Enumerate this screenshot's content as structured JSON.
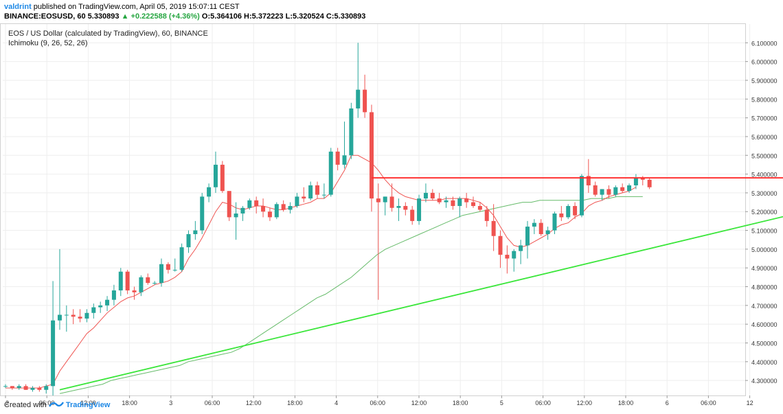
{
  "header": {
    "author": "valdrint",
    "published": "published on TradingView.com, April 05, 2019 15:07:11 CEST",
    "symbol": "BINANCE:EOSUSD, 60",
    "last": "5.330893",
    "change": "▲ +0.222588 (+4.36%)",
    "ohlc": "O:5.364106 H:5.372223 L:5.320524 C:5.330893"
  },
  "legend": {
    "title": "EOS / US Dollar (calculated by TradingView), 60, BINANCE",
    "indicator": "Ichimoku (9, 26, 52, 26)"
  },
  "footer": {
    "created": "Created with",
    "brand": "TradingView"
  },
  "colors": {
    "up": "#26a69a",
    "down": "#ef5350",
    "tenkan": "#ef5350",
    "kijun": "#66bb6a",
    "trend_red": "#ff2b2b",
    "trend_green": "#39e639"
  },
  "chart_data": {
    "type": "candlestick",
    "ylim": [
      4.22,
      6.2
    ],
    "y_ticks": [
      "6.100000",
      "6.000000",
      "5.900000",
      "5.800000",
      "5.700000",
      "5.600000",
      "5.500000",
      "5.400000",
      "5.300000",
      "5.200000",
      "5.100000",
      "5.000000",
      "4.900000",
      "4.800000",
      "4.700000",
      "4.600000",
      "4.500000",
      "4.400000",
      "4.300000"
    ],
    "x_ticks": [
      "2",
      "06:00",
      "12:00",
      "18:00",
      "3",
      "06:00",
      "12:00",
      "18:00",
      "4",
      "06:00",
      "12:00",
      "18:00",
      "5",
      "06:00",
      "12:00",
      "18:00",
      "6",
      "06:00",
      "12"
    ],
    "candles": [
      [
        4.27,
        4.28,
        4.26,
        4.27
      ],
      [
        4.27,
        4.27,
        4.25,
        4.26
      ],
      [
        4.26,
        4.28,
        4.25,
        4.27
      ],
      [
        4.27,
        4.28,
        4.25,
        4.25
      ],
      [
        4.25,
        4.27,
        4.24,
        4.26
      ],
      [
        4.26,
        4.27,
        4.24,
        4.25
      ],
      [
        4.25,
        4.28,
        4.23,
        4.27
      ],
      [
        4.27,
        4.83,
        4.22,
        4.62
      ],
      [
        4.62,
        5.0,
        4.57,
        4.65
      ],
      [
        4.65,
        4.7,
        4.56,
        4.65
      ],
      [
        4.65,
        4.68,
        4.6,
        4.64
      ],
      [
        4.64,
        4.68,
        4.61,
        4.63
      ],
      [
        4.63,
        4.68,
        4.61,
        4.66
      ],
      [
        4.66,
        4.71,
        4.63,
        4.69
      ],
      [
        4.69,
        4.72,
        4.66,
        4.7
      ],
      [
        4.7,
        4.75,
        4.67,
        4.73
      ],
      [
        4.73,
        4.81,
        4.7,
        4.78
      ],
      [
        4.78,
        4.9,
        4.75,
        4.88
      ],
      [
        4.88,
        4.89,
        4.76,
        4.78
      ],
      [
        4.78,
        4.8,
        4.73,
        4.77
      ],
      [
        4.77,
        4.86,
        4.75,
        4.85
      ],
      [
        4.85,
        4.87,
        4.81,
        4.82
      ],
      [
        4.82,
        4.83,
        4.81,
        4.82
      ],
      [
        4.82,
        4.95,
        4.8,
        4.92
      ],
      [
        4.92,
        4.93,
        4.87,
        4.89
      ],
      [
        4.89,
        4.95,
        4.88,
        4.89
      ],
      [
        4.89,
        5.03,
        4.88,
        5.01
      ],
      [
        5.01,
        5.1,
        4.98,
        5.08
      ],
      [
        5.08,
        5.15,
        5.05,
        5.1
      ],
      [
        5.1,
        5.3,
        5.08,
        5.28
      ],
      [
        5.28,
        5.35,
        5.25,
        5.33
      ],
      [
        5.33,
        5.52,
        5.3,
        5.45
      ],
      [
        5.45,
        5.47,
        5.3,
        5.31
      ],
      [
        5.31,
        5.3,
        5.15,
        5.17
      ],
      [
        5.17,
        5.25,
        5.05,
        5.19
      ],
      [
        5.19,
        5.23,
        5.15,
        5.22
      ],
      [
        5.22,
        5.27,
        5.21,
        5.26
      ],
      [
        5.26,
        5.28,
        5.19,
        5.23
      ],
      [
        5.23,
        5.27,
        5.17,
        5.2
      ],
      [
        5.2,
        5.22,
        5.15,
        5.17
      ],
      [
        5.17,
        5.25,
        5.16,
        5.24
      ],
      [
        5.24,
        5.26,
        5.2,
        5.21
      ],
      [
        5.21,
        5.25,
        5.19,
        5.23
      ],
      [
        5.23,
        5.3,
        5.22,
        5.28
      ],
      [
        5.28,
        5.33,
        5.25,
        5.27
      ],
      [
        5.27,
        5.36,
        5.26,
        5.34
      ],
      [
        5.34,
        5.36,
        5.27,
        5.29
      ],
      [
        5.29,
        5.35,
        5.27,
        5.29
      ],
      [
        5.29,
        5.54,
        5.28,
        5.52
      ],
      [
        5.52,
        5.54,
        5.42,
        5.45
      ],
      [
        5.45,
        5.68,
        5.43,
        5.5
      ],
      [
        5.5,
        5.78,
        5.48,
        5.75
      ],
      [
        5.75,
        6.1,
        5.7,
        5.85
      ],
      [
        5.85,
        5.93,
        5.7,
        5.73
      ],
      [
        5.73,
        5.77,
        5.2,
        5.27
      ],
      [
        5.27,
        5.35,
        4.73,
        5.25
      ],
      [
        5.25,
        5.28,
        5.18,
        5.28
      ],
      [
        5.28,
        5.35,
        5.2,
        5.22
      ],
      [
        5.22,
        5.27,
        5.15,
        5.23
      ],
      [
        5.23,
        5.25,
        5.18,
        5.21
      ],
      [
        5.21,
        5.23,
        5.13,
        5.15
      ],
      [
        5.15,
        5.29,
        5.13,
        5.27
      ],
      [
        5.27,
        5.35,
        5.25,
        5.3
      ],
      [
        5.3,
        5.32,
        5.26,
        5.27
      ],
      [
        5.27,
        5.3,
        5.24,
        5.25
      ],
      [
        5.25,
        5.28,
        5.22,
        5.26
      ],
      [
        5.26,
        5.28,
        5.21,
        5.23
      ],
      [
        5.23,
        5.28,
        5.17,
        5.27
      ],
      [
        5.27,
        5.3,
        5.22,
        5.25
      ],
      [
        5.25,
        5.28,
        5.22,
        5.23
      ],
      [
        5.23,
        5.25,
        5.2,
        5.21
      ],
      [
        5.21,
        5.23,
        5.12,
        5.15
      ],
      [
        5.15,
        5.24,
        4.99,
        5.07
      ],
      [
        5.07,
        5.1,
        4.9,
        4.97
      ],
      [
        4.97,
        5.02,
        4.87,
        4.95
      ],
      [
        4.95,
        5.0,
        4.88,
        4.99
      ],
      [
        4.99,
        5.05,
        4.92,
        5.02
      ],
      [
        5.02,
        5.15,
        4.95,
        5.12
      ],
      [
        5.12,
        5.16,
        5.08,
        5.14
      ],
      [
        5.14,
        5.16,
        5.07,
        5.08
      ],
      [
        5.08,
        5.12,
        5.05,
        5.1
      ],
      [
        5.1,
        5.2,
        5.08,
        5.19
      ],
      [
        5.19,
        5.23,
        5.15,
        5.17
      ],
      [
        5.17,
        5.24,
        5.16,
        5.23
      ],
      [
        5.23,
        5.25,
        5.16,
        5.18
      ],
      [
        5.18,
        5.4,
        5.17,
        5.39
      ],
      [
        5.39,
        5.48,
        5.3,
        5.34
      ],
      [
        5.34,
        5.36,
        5.28,
        5.29
      ],
      [
        5.29,
        5.32,
        5.26,
        5.32
      ],
      [
        5.32,
        5.34,
        5.27,
        5.29
      ],
      [
        5.29,
        5.34,
        5.28,
        5.33
      ],
      [
        5.33,
        5.35,
        5.3,
        5.31
      ],
      [
        5.31,
        5.35,
        5.3,
        5.34
      ],
      [
        5.34,
        5.4,
        5.32,
        5.38
      ],
      [
        5.38,
        5.39,
        5.34,
        5.37
      ],
      [
        5.37,
        5.38,
        5.32,
        5.33
      ]
    ],
    "tenkan": [
      4.26,
      4.26,
      4.26,
      4.26,
      4.26,
      4.26,
      4.27,
      4.28,
      4.35,
      4.4,
      4.45,
      4.5,
      4.55,
      4.58,
      4.62,
      4.66,
      4.69,
      4.72,
      4.74,
      4.75,
      4.77,
      4.79,
      4.81,
      4.82,
      4.83,
      4.85,
      4.88,
      4.95,
      5.0,
      5.06,
      5.13,
      5.2,
      5.25,
      5.24,
      5.22,
      5.21,
      5.22,
      5.23,
      5.23,
      5.22,
      5.21,
      5.21,
      5.22,
      5.23,
      5.24,
      5.25,
      5.27,
      5.27,
      5.3,
      5.36,
      5.42,
      5.5,
      5.5,
      5.48,
      5.46,
      5.42,
      5.37,
      5.33,
      5.3,
      5.28,
      5.27,
      5.26,
      5.26,
      5.26,
      5.26,
      5.27,
      5.27,
      5.27,
      5.27,
      5.26,
      5.25,
      5.22,
      5.18,
      5.12,
      5.06,
      5.02,
      5.01,
      5.02,
      5.04,
      5.06,
      5.08,
      5.11,
      5.13,
      5.14,
      5.17,
      5.19,
      5.23,
      5.25,
      5.26,
      5.28,
      5.29,
      5.3,
      5.31,
      5.33
    ],
    "kijun": [
      4.23,
      4.24,
      4.25,
      4.26,
      4.27,
      4.28,
      4.3,
      4.31,
      4.32,
      4.33,
      4.34,
      4.35,
      4.36,
      4.37,
      4.38,
      4.4,
      4.41,
      4.42,
      4.43,
      4.44,
      4.45,
      4.47,
      4.5,
      4.53,
      4.56,
      4.59,
      4.62,
      4.65,
      4.68,
      4.71,
      4.74,
      4.76,
      4.79,
      4.82,
      4.85,
      4.89,
      4.93,
      4.97,
      5.0,
      5.02,
      5.04,
      5.06,
      5.08,
      5.1,
      5.12,
      5.14,
      5.16,
      5.18,
      5.19,
      5.2,
      5.21,
      5.22,
      5.23,
      5.24,
      5.25,
      5.25,
      5.26,
      5.26,
      5.26,
      5.26,
      5.26,
      5.26,
      5.27,
      5.27,
      5.27,
      5.28,
      5.28,
      5.28,
      5.28
    ],
    "trendlines": [
      {
        "name": "resistance",
        "color": "red",
        "from": [
          54,
          5.38
        ],
        "to": [
          134,
          5.38
        ]
      },
      {
        "name": "support",
        "color": "green",
        "from": [
          8,
          4.25
        ],
        "to": [
          134,
          5.34
        ]
      }
    ]
  }
}
